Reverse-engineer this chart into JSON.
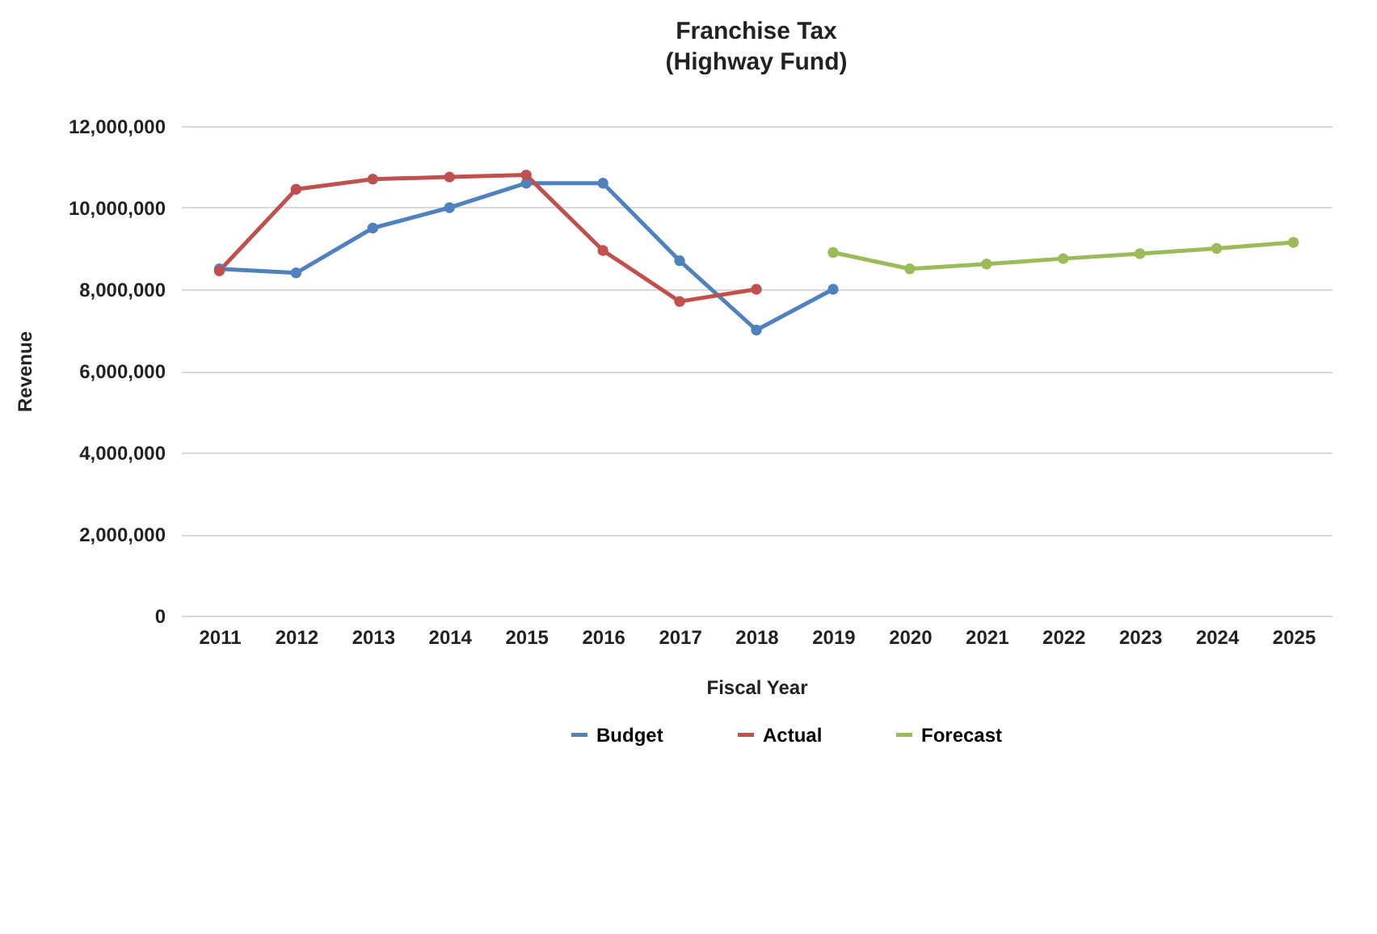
{
  "chart_data": {
    "type": "line",
    "title": "Franchise Tax",
    "subtitle": "(Highway Fund)",
    "xlabel": "Fiscal Year",
    "ylabel": "Revenue",
    "categories": [
      "2011",
      "2012",
      "2013",
      "2014",
      "2015",
      "2016",
      "2017",
      "2018",
      "2019",
      "2020",
      "2021",
      "2022",
      "2023",
      "2024",
      "2025"
    ],
    "series": [
      {
        "name": "Budget",
        "color": "#4f81bd",
        "values": [
          8500000,
          8400000,
          9500000,
          10000000,
          10600000,
          10600000,
          8700000,
          7000000,
          8000000,
          null,
          null,
          null,
          null,
          null,
          null
        ]
      },
      {
        "name": "Actual",
        "color": "#c0504d",
        "values": [
          8450000,
          10450000,
          10700000,
          10750000,
          10800000,
          8950000,
          7700000,
          8000000,
          null,
          null,
          null,
          null,
          null,
          null,
          null
        ]
      },
      {
        "name": "Forecast",
        "color": "#9bbb59",
        "values": [
          null,
          null,
          null,
          null,
          null,
          null,
          null,
          null,
          8900000,
          8500000,
          8620000,
          8750000,
          8870000,
          9000000,
          9150000
        ]
      }
    ],
    "ylim": [
      0,
      12000000
    ],
    "yticks": [
      0,
      {
        "value": 2000000,
        "label": "2,000,000"
      },
      {
        "value": 4000000,
        "label": "4,000,000"
      },
      {
        "value": 6000000,
        "label": "6,000,000"
      },
      {
        "value": 8000000,
        "label": "8,000,000"
      },
      {
        "value": 10000000,
        "label": "10,000,000"
      },
      {
        "value": 12000000,
        "label": "12,000,000"
      }
    ],
    "grid": "y",
    "legend": "bottom",
    "marker": "circle",
    "line_style": "solid"
  }
}
